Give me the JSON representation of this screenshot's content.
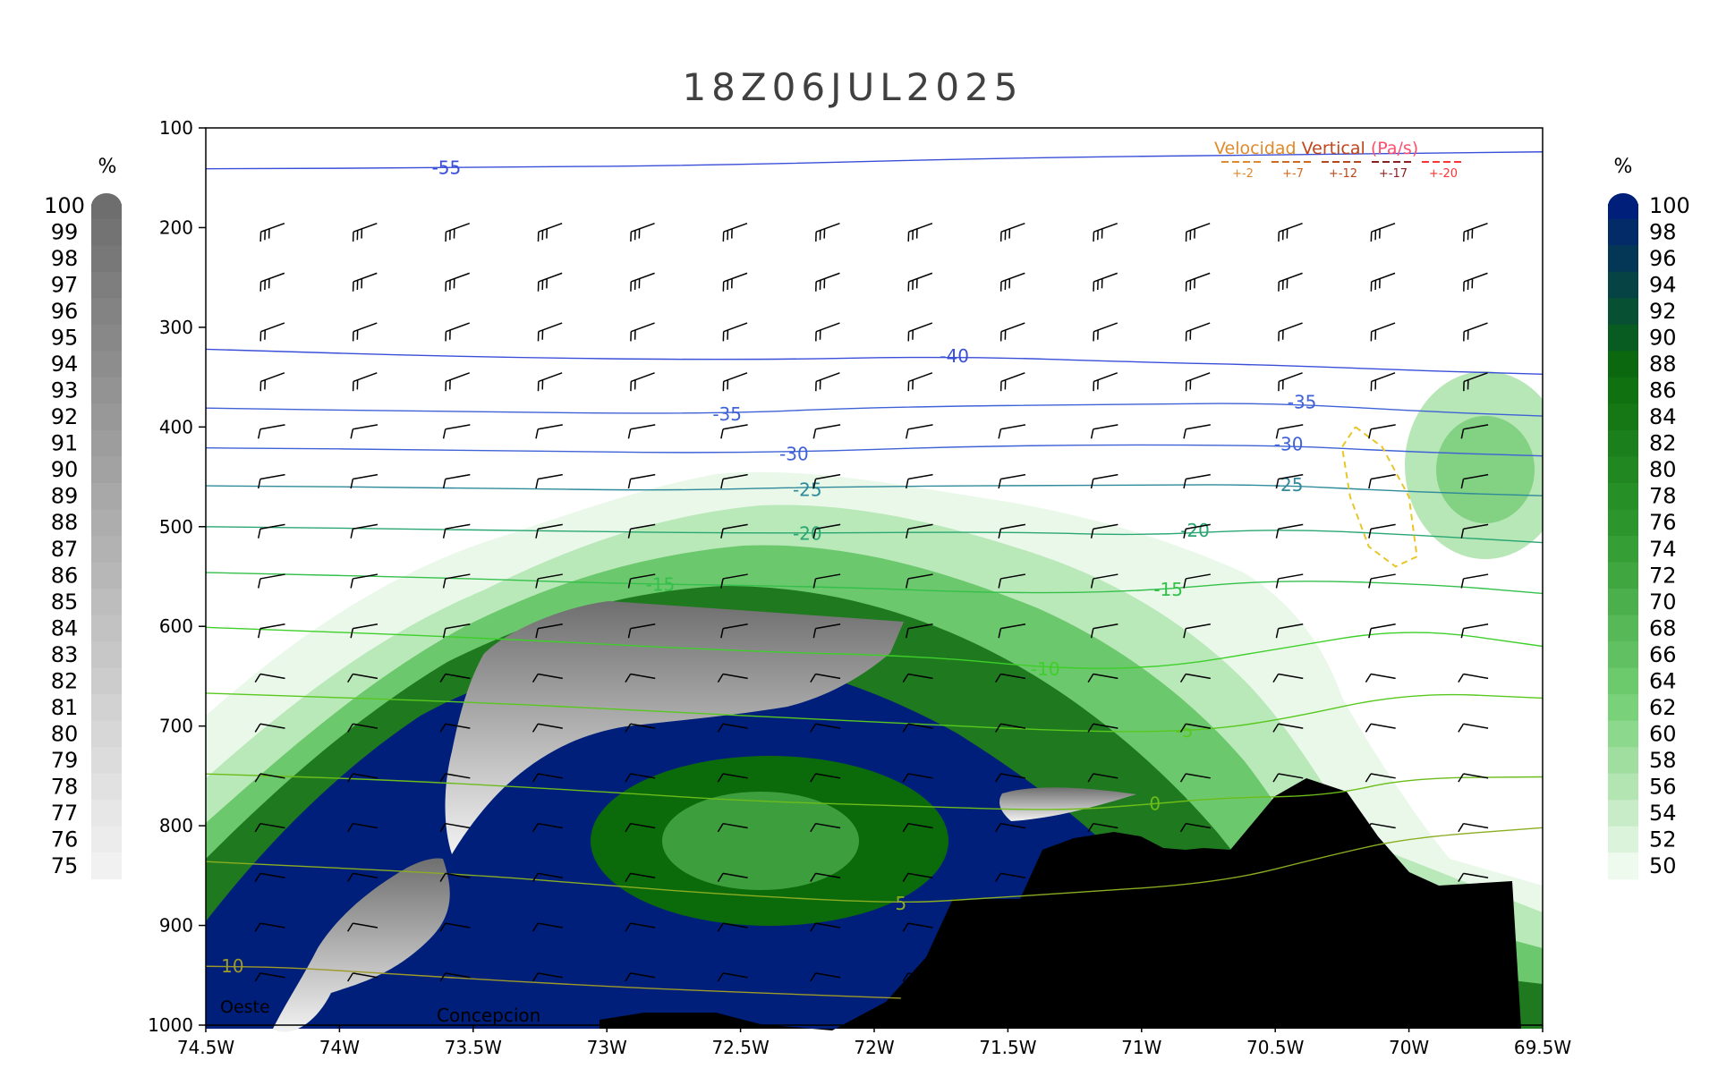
{
  "chart_data": {
    "type": "heatmap",
    "title": "18Z06JUL2025",
    "x_ticks": [
      "74.5W",
      "74W",
      "73.5W",
      "73W",
      "72.5W",
      "72W",
      "71.5W",
      "71W",
      "70.5W",
      "70W",
      "69.5W"
    ],
    "x_range": [
      -74.5,
      -69.5
    ],
    "y_ticks": [
      100,
      200,
      300,
      400,
      500,
      600,
      700,
      800,
      900,
      1000
    ],
    "y_range": [
      100,
      1000
    ],
    "y_scale": "linear, pressure increasing downward",
    "legend_left": {
      "unit": "%",
      "range": [
        75,
        100
      ],
      "labels": [
        100,
        99,
        98,
        97,
        96,
        95,
        94,
        93,
        92,
        91,
        90,
        89,
        88,
        87,
        86,
        85,
        84,
        83,
        82,
        81,
        80,
        79,
        78,
        77,
        76,
        75
      ],
      "colors": [
        "#6e6e6e",
        "#f1f1f1"
      ]
    },
    "legend_right": {
      "unit": "%",
      "range": [
        50,
        100
      ],
      "labels": [
        100,
        98,
        96,
        94,
        92,
        90,
        88,
        86,
        84,
        82,
        80,
        78,
        76,
        74,
        72,
        70,
        68,
        66,
        64,
        62,
        60,
        58,
        56,
        54,
        52,
        50
      ],
      "colors": [
        "#001f7a",
        "#0b6b0b",
        "#2f9a2f",
        "#74cf74",
        "#eefaee"
      ]
    },
    "vertical_velocity_legend": {
      "title_parts": [
        "Velocidad",
        " Vertical",
        "  (Pa/s)"
      ],
      "title_colors": [
        "#e08a2c",
        "#c0451a",
        "#ff4f6f"
      ],
      "entries": [
        "+-2",
        "+-7",
        "+-12",
        "+-17",
        "+-20"
      ],
      "entry_colors": [
        "#e08a2c",
        "#d2691e",
        "#b8461b",
        "#8b1e1e",
        "#ff3333"
      ]
    },
    "temperature_contours": [
      {
        "label": "-55",
        "color": "#3a4fd8",
        "points": [
          [
            -74.5,
            141
          ],
          [
            -73.5,
            140
          ],
          [
            -72.5,
            137
          ],
          [
            -71.5,
            130
          ],
          [
            -70.5,
            127
          ],
          [
            -69.5,
            124
          ]
        ],
        "label_at": [
          -73.6,
          140
        ]
      },
      {
        "label": "-40",
        "color": "#3a4fd8",
        "points": [
          [
            -74.5,
            322
          ],
          [
            -73.5,
            330
          ],
          [
            -72.5,
            333
          ],
          [
            -71.7,
            329
          ],
          [
            -71,
            335
          ],
          [
            -70.5,
            338
          ],
          [
            -69.9,
            344
          ],
          [
            -69.5,
            347
          ]
        ],
        "label_at": [
          -71.7,
          329
        ]
      },
      {
        "label": "-35",
        "color": "#3f62d6",
        "points": [
          [
            -74.5,
            381
          ],
          [
            -73.5,
            385
          ],
          [
            -72.6,
            387
          ],
          [
            -72,
            380
          ],
          [
            -71,
            377
          ],
          [
            -70.5,
            376
          ],
          [
            -69.9,
            385
          ],
          [
            -69.5,
            389
          ]
        ],
        "label_at": [
          -72.55,
          387
        ]
      },
      {
        "label": "-35",
        "color": "#3f62d6",
        "points": [],
        "label_at": [
          -70.4,
          375
        ]
      },
      {
        "label": "-30",
        "color": "#3f62d6",
        "points": [
          [
            -74.5,
            421
          ],
          [
            -73.5,
            423
          ],
          [
            -72.5,
            427
          ],
          [
            -71.5,
            418
          ],
          [
            -70.5,
            418
          ],
          [
            -70,
            425
          ],
          [
            -69.5,
            429
          ]
        ],
        "label_at": [
          -72.3,
          427
        ]
      },
      {
        "label": "-30",
        "color": "#3f62d6",
        "points": [],
        "label_at": [
          -70.45,
          417
        ]
      },
      {
        "label": "-25",
        "color": "#2f8a9a",
        "points": [
          [
            -74.5,
            459
          ],
          [
            -73.5,
            461
          ],
          [
            -72.8,
            464
          ],
          [
            -72.2,
            460
          ],
          [
            -71,
            458
          ],
          [
            -70.5,
            458
          ],
          [
            -70,
            465
          ],
          [
            -69.5,
            469
          ]
        ],
        "label_at": [
          -72.25,
          463
        ]
      },
      {
        "label": "-25",
        "color": "#2f8a9a",
        "points": [],
        "label_at": [
          -70.45,
          458
        ]
      },
      {
        "label": "-20",
        "color": "#2aa672",
        "points": [
          [
            -74.5,
            500
          ],
          [
            -73.5,
            503
          ],
          [
            -72.5,
            507
          ],
          [
            -71.5,
            505
          ],
          [
            -71,
            509
          ],
          [
            -70.5,
            502
          ],
          [
            -70,
            508
          ],
          [
            -69.5,
            516
          ]
        ],
        "label_at": [
          -72.25,
          507
        ]
      },
      {
        "label": "-20",
        "color": "#2aa672",
        "points": [],
        "label_at": [
          -70.8,
          504
        ]
      },
      {
        "label": "-15",
        "color": "#34c04a",
        "points": [
          [
            -74.5,
            546
          ],
          [
            -73.5,
            552
          ],
          [
            -73,
            557
          ],
          [
            -72.2,
            560
          ],
          [
            -71.5,
            567
          ],
          [
            -71,
            565
          ],
          [
            -70.5,
            553
          ],
          [
            -69.9,
            558
          ],
          [
            -69.5,
            567
          ]
        ],
        "label_at": [
          -72.8,
          558
        ]
      },
      {
        "label": "-15",
        "color": "#34c04a",
        "points": [],
        "label_at": [
          -70.9,
          563
        ]
      },
      {
        "label": "-10",
        "color": "#3ecf2a",
        "points": [
          [
            -74.5,
            601
          ],
          [
            -73.5,
            611
          ],
          [
            -72.5,
            625
          ],
          [
            -71.8,
            630
          ],
          [
            -71.3,
            643
          ],
          [
            -70.9,
            641
          ],
          [
            -70.5,
            623
          ],
          [
            -70,
            601
          ],
          [
            -69.5,
            620
          ]
        ],
        "label_at": [
          -71.36,
          643
        ]
      },
      {
        "label": "-5",
        "color": "#58c81e",
        "points": [
          [
            -74.5,
            667
          ],
          [
            -73.5,
            676
          ],
          [
            -72.9,
            684
          ],
          [
            -72,
            696
          ],
          [
            -71.2,
            706
          ],
          [
            -70.8,
            705
          ],
          [
            -70.5,
            695
          ],
          [
            -70,
            666
          ],
          [
            -69.5,
            672
          ]
        ],
        "label_at": [
          -70.84,
          705
        ]
      },
      {
        "label": "0",
        "color": "#6cbc1a",
        "points": [
          [
            -74.5,
            748
          ],
          [
            -73.8,
            754
          ],
          [
            -73,
            766
          ],
          [
            -72.5,
            775
          ],
          [
            -71.8,
            781
          ],
          [
            -71.3,
            785
          ],
          [
            -70.95,
            778
          ],
          [
            -70.7,
            772
          ],
          [
            -70.3,
            770
          ],
          [
            -70,
            752
          ],
          [
            -69.5,
            751
          ]
        ],
        "label_at": [
          -70.95,
          778
        ]
      },
      {
        "label": "5",
        "color": "#8aad22",
        "points": [
          [
            -74.5,
            836
          ],
          [
            -73.5,
            849
          ],
          [
            -73,
            860
          ],
          [
            -72.5,
            870
          ],
          [
            -71.9,
            878
          ],
          [
            -71.6,
            873
          ],
          [
            -71.3,
            868
          ],
          [
            -70.7,
            857
          ],
          [
            -70.3,
            830
          ],
          [
            -70,
            812
          ],
          [
            -69.5,
            802
          ]
        ],
        "label_at": [
          -71.9,
          878
        ]
      },
      {
        "label": "10",
        "color": "#9d9a28",
        "points": [
          [
            -74.5,
            941
          ],
          [
            -74.2,
            942
          ],
          [
            -73.9,
            947
          ],
          [
            -73.3,
            957
          ],
          [
            -72.7,
            965
          ],
          [
            -71.9,
            973
          ]
        ],
        "label_at": [
          -74.4,
          941
        ]
      }
    ],
    "vertical_velocity_contours": [
      {
        "value": "+-2",
        "color": "#e8c62a",
        "points": [
          [
            -70.2,
            400
          ],
          [
            -70.1,
            420
          ],
          [
            -70.0,
            470
          ],
          [
            -69.97,
            530
          ],
          [
            -70.05,
            540
          ],
          [
            -70.15,
            520
          ],
          [
            -70.22,
            470
          ],
          [
            -70.25,
            420
          ],
          [
            -70.2,
            400
          ]
        ]
      }
    ],
    "wind_barb_columns": [
      "74.25W",
      "73.9W",
      "73.55W",
      "73.2W",
      "72.85W",
      "72.5W",
      "72.15W",
      "71.8W",
      "71.45W",
      "71.1W",
      "70.75W",
      "70.4W",
      "70.05W",
      "69.7W"
    ],
    "wind_barb_levels": [
      200,
      250,
      300,
      350,
      400,
      450,
      500,
      550,
      600,
      650,
      700,
      750,
      800,
      850,
      900,
      950
    ],
    "annotations": [
      "Oeste",
      "Concepcion"
    ],
    "shading_notes": "Blue-green relative humidity field 50-100% from ~450 hPa to surface; grey cloud-water field 75-100% embedded between 73.7W-71.8W at 580-700 hPa and near 74.2W-73.6W below 750 hPa; black terrain silhouette from 72.1W to 69.5W below ~760 hPa."
  }
}
